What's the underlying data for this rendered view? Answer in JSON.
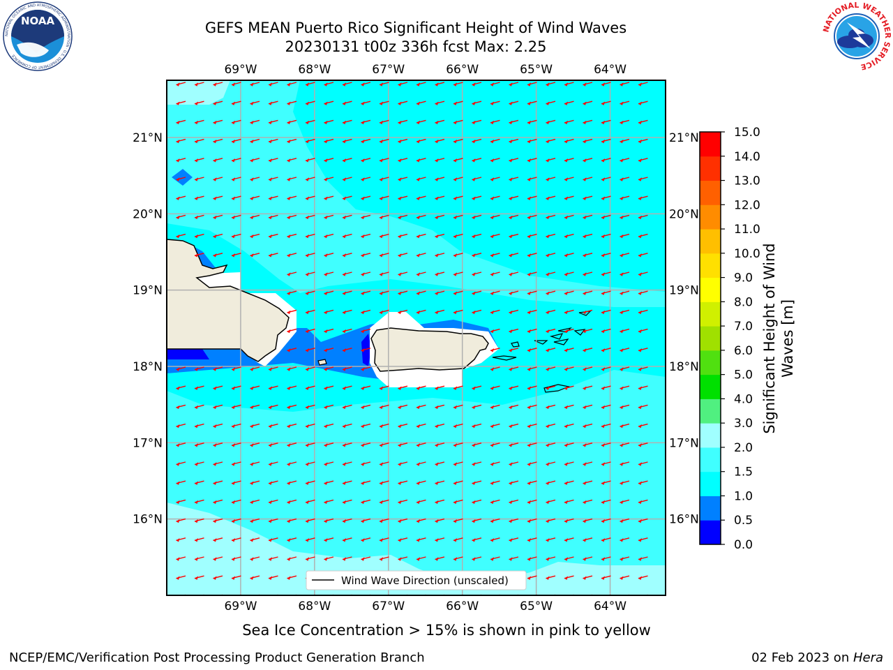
{
  "header": {
    "title_line1": "GEFS MEAN Puerto Rico Significant Height of Wind Waves",
    "title_line2": "20230131 t00z 336h fcst   Max: 2.25"
  },
  "logos": {
    "noaa": {
      "text": "NOAA",
      "ring_text": "NATIONAL OCEANIC AND ATMOSPHERIC ADMINISTRATION · U.S. DEPARTMENT OF COMMERCE",
      "colors": {
        "navy": "#1d3a7a",
        "sky": "#1b8fd8"
      }
    },
    "nws": {
      "ring_text": "NATIONAL WEATHER SERVICE",
      "colors": {
        "red": "#e41c24",
        "blue": "#1d5fb6"
      }
    }
  },
  "map": {
    "lon_range": [
      -70.0,
      -63.25
    ],
    "lat_range": [
      15.0,
      21.75
    ],
    "lon_ticks": [
      -69,
      -68,
      -67,
      -66,
      -65,
      -64
    ],
    "lat_ticks": [
      16,
      17,
      18,
      19,
      20,
      21
    ],
    "lon_tick_labels": [
      "69°W",
      "68°W",
      "67°W",
      "66°W",
      "65°W",
      "64°W"
    ],
    "lat_tick_labels": [
      "16°N",
      "17°N",
      "18°N",
      "19°N",
      "20°N",
      "21°N"
    ],
    "grid": true,
    "land_color": "#f0ecdc",
    "ocean_base_color": "#00ffff",
    "arrow_color": "#ff0000",
    "arrow_direction": "toward west-southwest"
  },
  "legend": {
    "label": "Wind Wave Direction (unscaled)",
    "placement": "lower-center"
  },
  "colorbar": {
    "title": "Significant Height of Wind Waves [m]",
    "title_line1": "Significant Height of Wind",
    "title_line2": "Waves [m]",
    "levels": [
      0.0,
      0.5,
      1.0,
      1.5,
      2.0,
      3.0,
      4.0,
      5.0,
      6.0,
      7.0,
      8.0,
      9.0,
      10.0,
      11.0,
      12.0,
      13.0,
      14.0,
      15.0
    ],
    "tick_labels": [
      "0.0",
      "0.5",
      "1.0",
      "1.5",
      "2.0",
      "3.0",
      "4.0",
      "5.0",
      "6.0",
      "7.0",
      "8.0",
      "9.0",
      "10.0",
      "11.0",
      "12.0",
      "13.0",
      "14.0",
      "15.0"
    ],
    "colors": [
      "#0000ff",
      "#0080ff",
      "#00ffff",
      "#40ffff",
      "#a0ffff",
      "#50f080",
      "#00e000",
      "#50e010",
      "#a0e000",
      "#d0f000",
      "#ffff00",
      "#ffe000",
      "#ffbf00",
      "#ff8c00",
      "#ff6000",
      "#ff3000",
      "#ff0000"
    ]
  },
  "footer": {
    "subtitle": "Sea Ice Concentration > 15% is shown in pink to yellow",
    "left": "NCEP/EMC/Verification Post Processing Product Generation Branch",
    "right_date": "02 Feb 2023 on ",
    "right_host": "Hera"
  }
}
